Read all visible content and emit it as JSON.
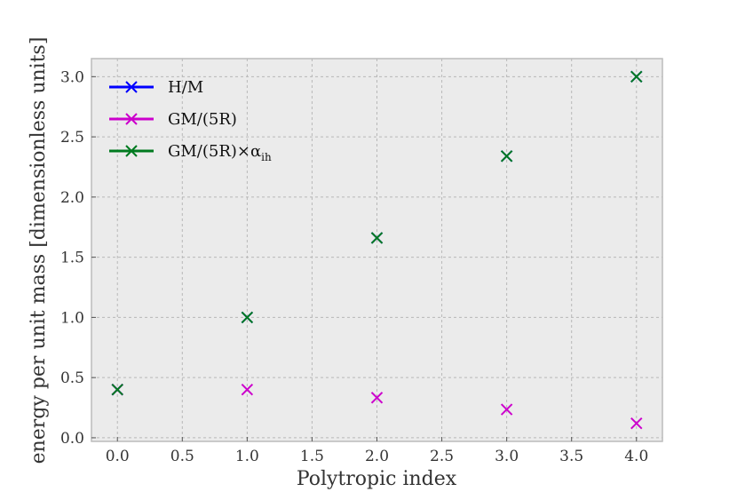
{
  "chart_data": {
    "type": "scatter",
    "xlabel": "Polytropic index",
    "ylabel": "energy per unit mass [dimensionless units]",
    "xlim": [
      -0.2,
      4.2
    ],
    "ylim": [
      -0.03,
      3.15
    ],
    "xticks": [
      "0.0",
      "0.5",
      "1.0",
      "1.5",
      "2.0",
      "2.5",
      "3.0",
      "3.5",
      "4.0"
    ],
    "yticks": [
      "0.0",
      "0.5",
      "1.0",
      "1.5",
      "2.0",
      "2.5",
      "3.0"
    ],
    "grid": true,
    "legend_position": "top-left",
    "marker": "x",
    "series": [
      {
        "name": "H/M",
        "color": "#0000ff",
        "x": [
          0,
          1,
          2,
          3,
          4
        ],
        "y": [
          0.4,
          1.0,
          1.66,
          2.34,
          3.0
        ]
      },
      {
        "name": "GM/(5R)",
        "color": "#cc00cc",
        "x": [
          0,
          1,
          2,
          3,
          4
        ],
        "y": [
          0.4,
          0.4,
          0.333,
          0.235,
          0.12
        ]
      },
      {
        "name": "GM/(5R)×α",
        "name_subscript": "ih",
        "color": "#007a1f",
        "x": [
          0,
          1,
          2,
          3,
          4
        ],
        "y": [
          0.4,
          1.0,
          1.66,
          2.34,
          3.0
        ]
      }
    ]
  }
}
